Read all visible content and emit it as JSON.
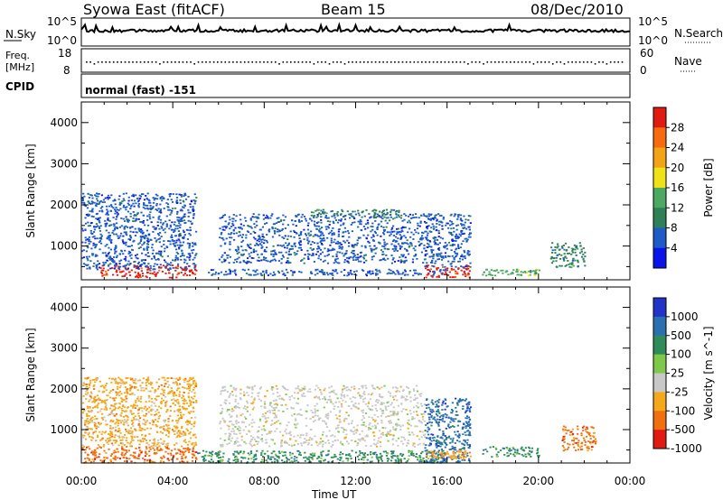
{
  "header": {
    "title": "Syowa East (fitACF)",
    "beam": "Beam 15",
    "date": "08/Dec/2010"
  },
  "top_panels": {
    "nsky_label": "N.Sky",
    "nsky_ticks": [
      "10^5",
      "10^0"
    ],
    "nsearch_label": "N.Search",
    "nsearch_ticks": [
      "10^5",
      "10^0"
    ],
    "freq_label_line1": "Freq.",
    "freq_label_line2": "[MHz]",
    "freq_ticks": [
      "18",
      "8"
    ],
    "nave_label": "Nave",
    "nave_ticks": [
      "60",
      "0"
    ],
    "cpid_label": "CPID",
    "cpid_value": "normal (fast) -151"
  },
  "chart_data": [
    {
      "type": "heatmap",
      "name": "power",
      "ylabel": "Slant Range [km]",
      "xlabel": "",
      "x_ticks": [
        "00:00",
        "04:00",
        "08:00",
        "12:00",
        "16:00",
        "20:00",
        "00:00"
      ],
      "y_ticks": [
        "1000",
        "2000",
        "3000",
        "4000"
      ],
      "ylim": [
        180,
        4500
      ],
      "xlim_hours": [
        0,
        24
      ],
      "colorbar": {
        "label": "Power [dB]",
        "ticks": [
          "4",
          "8",
          "12",
          "16",
          "20",
          "24",
          "28"
        ],
        "colors": [
          "#0b14e8",
          "#1e5bc6",
          "#2f7f58",
          "#4da862",
          "#f0e21a",
          "#f3a416",
          "#f66a10",
          "#e01c12"
        ]
      },
      "features": [
        {
          "t": [
            0.8,
            5.0
          ],
          "range": [
            250,
            550
          ],
          "value": 28
        },
        {
          "t": [
            15.0,
            17.0
          ],
          "range": [
            250,
            550
          ],
          "value": 28
        },
        {
          "t": [
            17.5,
            20.0
          ],
          "range": [
            300,
            450
          ],
          "value": 16
        },
        {
          "t": [
            5.5,
            16.0
          ],
          "range": [
            300,
            450
          ],
          "value": 8
        },
        {
          "t": [
            0.0,
            5.0
          ],
          "range": [
            450,
            2300
          ],
          "value": 8
        },
        {
          "t": [
            6.0,
            15.0
          ],
          "range": [
            600,
            1800
          ],
          "value": 8
        },
        {
          "t": [
            10.0,
            14.0
          ],
          "range": [
            1700,
            1900
          ],
          "value": 12
        },
        {
          "t": [
            15.0,
            17.0
          ],
          "range": [
            500,
            1800
          ],
          "value": 8
        },
        {
          "t": [
            20.5,
            22.0
          ],
          "range": [
            500,
            1100
          ],
          "value": 12
        }
      ]
    },
    {
      "type": "heatmap",
      "name": "velocity",
      "ylabel": "Slant Range [km]",
      "xlabel": "Time UT",
      "x_ticks": [
        "00:00",
        "04:00",
        "08:00",
        "12:00",
        "16:00",
        "20:00",
        "00:00"
      ],
      "y_ticks": [
        "1000",
        "2000",
        "3000",
        "4000"
      ],
      "ylim": [
        180,
        4500
      ],
      "xlim_hours": [
        0,
        24
      ],
      "colorbar": {
        "label": "Velocity [m s^-1]",
        "ticks": [
          "1000",
          "500",
          "100",
          "25",
          "-25",
          "-100",
          "-500",
          "-1000"
        ],
        "colors": [
          "#2233c8",
          "#2a6fb0",
          "#2f8c5a",
          "#7ec84a",
          "#c8c8c8",
          "#f5a81c",
          "#f07010",
          "#e01c12"
        ]
      },
      "features": [
        {
          "t": [
            0.0,
            5.0
          ],
          "range": [
            200,
            600
          ],
          "value": -500
        },
        {
          "t": [
            0.0,
            5.0
          ],
          "range": [
            600,
            2300
          ],
          "value": -100
        },
        {
          "t": [
            5.0,
            16.0
          ],
          "range": [
            200,
            500
          ],
          "value": 100
        },
        {
          "t": [
            6.0,
            15.0
          ],
          "range": [
            600,
            2100
          ],
          "value": 25
        },
        {
          "t": [
            15.0,
            17.0
          ],
          "range": [
            200,
            1800
          ],
          "value": 500
        },
        {
          "t": [
            15.0,
            17.0
          ],
          "range": [
            300,
            500
          ],
          "value": -100
        },
        {
          "t": [
            17.5,
            20.0
          ],
          "range": [
            350,
            600
          ],
          "value": 100
        },
        {
          "t": [
            21.0,
            22.5
          ],
          "range": [
            500,
            1100
          ],
          "value": -500
        }
      ]
    }
  ]
}
